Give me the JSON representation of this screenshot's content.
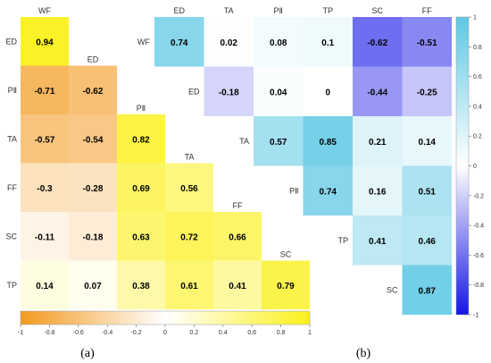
{
  "chart_data": [
    {
      "type": "heatmap",
      "panel_label": "(a)",
      "variables": [
        "WF",
        "ED",
        "PⅡ",
        "TA",
        "FF",
        "SC",
        "TP"
      ],
      "rows": [
        {
          "row": "ED",
          "cols": [
            "WF"
          ],
          "values": [
            0.94
          ]
        },
        {
          "row": "PⅡ",
          "cols": [
            "WF",
            "ED"
          ],
          "values": [
            -0.71,
            -0.62
          ]
        },
        {
          "row": "TA",
          "cols": [
            "WF",
            "ED",
            "PⅡ"
          ],
          "values": [
            -0.57,
            -0.54,
            0.82
          ]
        },
        {
          "row": "FF",
          "cols": [
            "WF",
            "ED",
            "PⅡ",
            "TA"
          ],
          "values": [
            -0.3,
            -0.28,
            0.69,
            0.56
          ]
        },
        {
          "row": "SC",
          "cols": [
            "WF",
            "ED",
            "PⅡ",
            "TA",
            "FF"
          ],
          "values": [
            -0.11,
            -0.18,
            0.63,
            0.72,
            0.66
          ]
        },
        {
          "row": "TP",
          "cols": [
            "WF",
            "ED",
            "PⅡ",
            "TA",
            "FF",
            "SC"
          ],
          "values": [
            0.14,
            0.07,
            0.38,
            0.61,
            0.41,
            0.79
          ]
        }
      ],
      "colorbar": {
        "orientation": "horizontal",
        "range": [
          -1,
          1
        ],
        "ticks": [
          -1,
          -0.8,
          -0.6,
          -0.4,
          -0.2,
          0,
          0.2,
          0.4,
          0.6,
          0.8,
          1
        ],
        "colors": {
          "negative": "#f39a1e",
          "zero": "#ffffff",
          "positive": "#fbf01a"
        }
      }
    },
    {
      "type": "heatmap",
      "panel_label": "(b)",
      "col_headers": [
        "ED",
        "TA",
        "PⅡ",
        "TP",
        "SC",
        "FF"
      ],
      "rows": [
        {
          "row": "WF",
          "cols": [
            "ED",
            "TA",
            "PⅡ",
            "TP",
            "SC",
            "FF"
          ],
          "values": [
            0.74,
            0.02,
            0.08,
            0.1,
            -0.62,
            -0.51
          ]
        },
        {
          "row": "ED",
          "cols": [
            "TA",
            "PⅡ",
            "TP",
            "SC",
            "FF"
          ],
          "values": [
            -0.18,
            0.04,
            0,
            -0.44,
            -0.25
          ]
        },
        {
          "row": "TA",
          "cols": [
            "PⅡ",
            "TP",
            "SC",
            "FF"
          ],
          "values": [
            0.57,
            0.85,
            0.21,
            0.14
          ]
        },
        {
          "row": "PⅡ",
          "cols": [
            "TP",
            "SC",
            "FF"
          ],
          "values": [
            0.74,
            0.16,
            0.51
          ]
        },
        {
          "row": "TP",
          "cols": [
            "SC",
            "FF"
          ],
          "values": [
            0.41,
            0.46
          ]
        },
        {
          "row": "SC",
          "cols": [
            "FF"
          ],
          "values": [
            0.87
          ]
        }
      ],
      "colorbar": {
        "orientation": "vertical",
        "range": [
          -1,
          1
        ],
        "ticks": [
          1,
          0.8,
          0.6,
          0.4,
          0.2,
          0,
          -0.2,
          -0.4,
          -0.6,
          -0.8,
          -1
        ],
        "colors": {
          "negative": "#1515e6",
          "zero": "#ffffff",
          "positive": "#5ec8e4"
        }
      }
    }
  ]
}
